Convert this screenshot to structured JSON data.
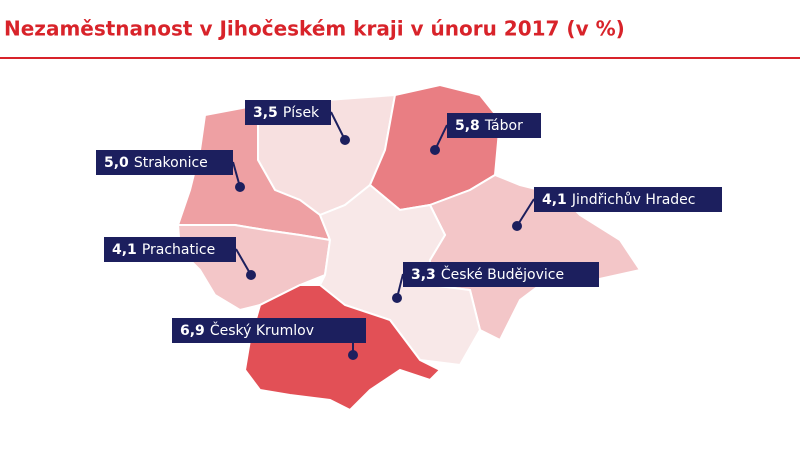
{
  "title": "Nezaměstnanost v Jihočeském kraji v únoru 2017 (v %)",
  "regions": [
    {
      "name": "Písek",
      "value": 3.5,
      "label": "3,5"
    },
    {
      "name": "Tábor",
      "value": 5.8,
      "label": "5,8"
    },
    {
      "name": "Strakonice",
      "value": 5.0,
      "label": "5,0"
    },
    {
      "name": "Jindřichův Hradec",
      "value": 4.1,
      "label": "4,1"
    },
    {
      "name": "Prachatice",
      "value": 4.1,
      "label": "4,1"
    },
    {
      "name": "České Budějovice",
      "value": 3.3,
      "label": "3,3"
    },
    {
      "name": "Český Krumlov",
      "value": 6.9,
      "label": "6,9"
    }
  ]
}
